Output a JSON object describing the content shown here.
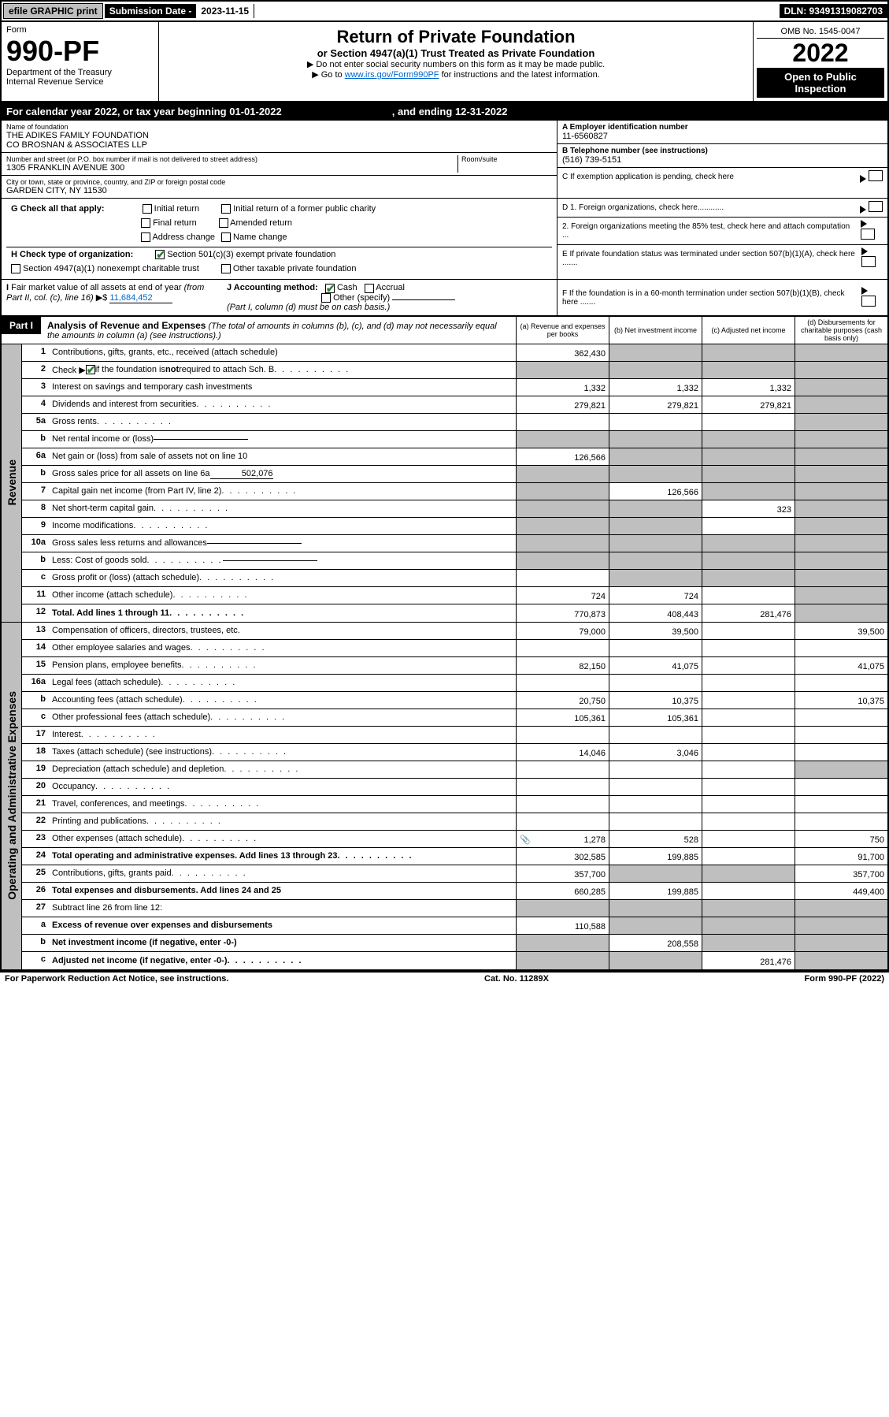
{
  "top": {
    "efile": "efile GRAPHIC print",
    "subm_label": "Submission Date - ",
    "subm_date": "2023-11-15",
    "dln": "DLN: 93491319082703"
  },
  "header": {
    "form_word": "Form",
    "form_no": "990-PF",
    "dept": "Department of the Treasury",
    "irs": "Internal Revenue Service",
    "title": "Return of Private Foundation",
    "subtitle": "or Section 4947(a)(1) Trust Treated as Private Foundation",
    "instr1": "▶ Do not enter social security numbers on this form as it may be made public.",
    "instr2_pre": "▶ Go to ",
    "instr2_link": "www.irs.gov/Form990PF",
    "instr2_post": " for instructions and the latest information.",
    "omb": "OMB No. 1545-0047",
    "year": "2022",
    "openpub": "Open to Public Inspection"
  },
  "calyear": {
    "text1": "For calendar year 2022, or tax year beginning ",
    "begin": "01-01-2022",
    "text2": ", and ending ",
    "end": "12-31-2022"
  },
  "info": {
    "name_label": "Name of foundation",
    "name1": "THE ADIKES FAMILY FOUNDATION",
    "name2": "CO BROSNAN & ASSOCIATES LLP",
    "addr_label": "Number and street (or P.O. box number if mail is not delivered to street address)",
    "addr": "1305 FRANKLIN AVENUE 300",
    "room_label": "Room/suite",
    "city_label": "City or town, state or province, country, and ZIP or foreign postal code",
    "city": "GARDEN CITY, NY  11530",
    "ein_label": "A Employer identification number",
    "ein": "11-6560827",
    "tel_label": "B Telephone number (see instructions)",
    "tel": "(516) 739-5151",
    "c_label": "C If exemption application is pending, check here",
    "d1": "D 1. Foreign organizations, check here............",
    "d2": "2. Foreign organizations meeting the 85% test, check here and attach computation ...",
    "e_label": "E  If private foundation status was terminated under section 507(b)(1)(A), check here .......",
    "f_label": "F  If the foundation is in a 60-month termination under section 507(b)(1)(B), check here .......",
    "g_label": "G Check all that apply:",
    "g_opts": [
      "Initial return",
      "Initial return of a former public charity",
      "Final return",
      "Amended return",
      "Address change",
      "Name change"
    ],
    "h_label": "H Check type of organization:",
    "h1": "Section 501(c)(3) exempt private foundation",
    "h2": "Section 4947(a)(1) nonexempt charitable trust",
    "h3": "Other taxable private foundation",
    "i_label": "I Fair market value of all assets at end of year (from Part II, col. (c), line 16) ▶$ ",
    "i_val": "11,684,452",
    "j_label": "J Accounting method:",
    "j_cash": "Cash",
    "j_accr": "Accrual",
    "j_other": "Other (specify)",
    "j_note": "(Part I, column (d) must be on cash basis.)"
  },
  "part1": {
    "tag": "Part I",
    "title": "Analysis of Revenue and Expenses",
    "title_note": " (The total of amounts in columns (b), (c), and (d) may not necessarily equal the amounts in column (a) (see instructions).)",
    "col_a": "(a)   Revenue and expenses per books",
    "col_b": "(b)   Net investment income",
    "col_c": "(c)   Adjusted net income",
    "col_d": "(d)  Disbursements for charitable purposes (cash basis only)"
  },
  "sections": {
    "revenue": "Revenue",
    "opexp": "Operating and Administrative Expenses"
  },
  "rows": [
    {
      "n": "1",
      "label": "Contributions, gifts, grants, etc., received (attach schedule)",
      "a": "362,430",
      "b_grey": true,
      "c_grey": true,
      "d_grey": true
    },
    {
      "n": "2",
      "label": "Check ▶ ☑ if the foundation is not required to attach Sch. B",
      "dots": true,
      "a_grey": true,
      "b_grey": true,
      "c_grey": true,
      "d_grey": true,
      "bold_not": true
    },
    {
      "n": "3",
      "label": "Interest on savings and temporary cash investments",
      "a": "1,332",
      "b": "1,332",
      "c": "1,332",
      "d_grey": true
    },
    {
      "n": "4",
      "label": "Dividends and interest from securities",
      "dots": true,
      "a": "279,821",
      "b": "279,821",
      "c": "279,821",
      "d_grey": true
    },
    {
      "n": "5a",
      "label": "Gross rents",
      "dots": true,
      "d_grey": true
    },
    {
      "n": "b",
      "label": "Net rental income or (loss)",
      "inline": true,
      "a_grey": true,
      "b_grey": true,
      "c_grey": true,
      "d_grey": true
    },
    {
      "n": "6a",
      "label": "Net gain or (loss) from sale of assets not on line 10",
      "a": "126,566",
      "b_grey": true,
      "c_grey": true,
      "d_grey": true
    },
    {
      "n": "b",
      "label": "Gross sales price for all assets on line 6a",
      "inline_val": "502,076",
      "a_grey": true,
      "b_grey": true,
      "c_grey": true,
      "d_grey": true
    },
    {
      "n": "7",
      "label": "Capital gain net income (from Part IV, line 2)",
      "dots": true,
      "a_grey": true,
      "b": "126,566",
      "c_grey": true,
      "d_grey": true
    },
    {
      "n": "8",
      "label": "Net short-term capital gain",
      "dots": true,
      "a_grey": true,
      "b_grey": true,
      "c": "323",
      "d_grey": true
    },
    {
      "n": "9",
      "label": "Income modifications",
      "dots": true,
      "a_grey": true,
      "b_grey": true,
      "d_grey": true
    },
    {
      "n": "10a",
      "label": "Gross sales less returns and allowances",
      "inline": true,
      "a_grey": true,
      "b_grey": true,
      "c_grey": true,
      "d_grey": true
    },
    {
      "n": "b",
      "label": "Less: Cost of goods sold",
      "dots": true,
      "inline": true,
      "a_grey": true,
      "b_grey": true,
      "c_grey": true,
      "d_grey": true
    },
    {
      "n": "c",
      "label": "Gross profit or (loss) (attach schedule)",
      "dots": true,
      "b_grey": true,
      "c_grey": true,
      "d_grey": true
    },
    {
      "n": "11",
      "label": "Other income (attach schedule)",
      "dots": true,
      "a": "724",
      "b": "724",
      "d_grey": true
    },
    {
      "n": "12",
      "label": "Total. Add lines 1 through 11",
      "dots": true,
      "bold": true,
      "a": "770,873",
      "b": "408,443",
      "c": "281,476",
      "d_grey": true
    }
  ],
  "oprows": [
    {
      "n": "13",
      "label": "Compensation of officers, directors, trustees, etc.",
      "a": "79,000",
      "b": "39,500",
      "d": "39,500"
    },
    {
      "n": "14",
      "label": "Other employee salaries and wages",
      "dots": true
    },
    {
      "n": "15",
      "label": "Pension plans, employee benefits",
      "dots": true,
      "a": "82,150",
      "b": "41,075",
      "d": "41,075"
    },
    {
      "n": "16a",
      "label": "Legal fees (attach schedule)",
      "dots": true
    },
    {
      "n": "b",
      "label": "Accounting fees (attach schedule)",
      "dots": true,
      "a": "20,750",
      "b": "10,375",
      "d": "10,375"
    },
    {
      "n": "c",
      "label": "Other professional fees (attach schedule)",
      "dots": true,
      "a": "105,361",
      "b": "105,361"
    },
    {
      "n": "17",
      "label": "Interest",
      "dots": true
    },
    {
      "n": "18",
      "label": "Taxes (attach schedule) (see instructions)",
      "dots": true,
      "a": "14,046",
      "b": "3,046"
    },
    {
      "n": "19",
      "label": "Depreciation (attach schedule) and depletion",
      "dots": true,
      "d_grey": true
    },
    {
      "n": "20",
      "label": "Occupancy",
      "dots": true
    },
    {
      "n": "21",
      "label": "Travel, conferences, and meetings",
      "dots": true
    },
    {
      "n": "22",
      "label": "Printing and publications",
      "dots": true
    },
    {
      "n": "23",
      "label": "Other expenses (attach schedule)",
      "dots": true,
      "a": "1,278",
      "b": "528",
      "d": "750",
      "icon": true
    },
    {
      "n": "24",
      "label": "Total operating and administrative expenses. Add lines 13 through 23",
      "dots": true,
      "bold": true,
      "a": "302,585",
      "b": "199,885",
      "d": "91,700"
    },
    {
      "n": "25",
      "label": "Contributions, gifts, grants paid",
      "dots": true,
      "a": "357,700",
      "b_grey": true,
      "c_grey": true,
      "d": "357,700"
    },
    {
      "n": "26",
      "label": "Total expenses and disbursements. Add lines 24 and 25",
      "bold": true,
      "a": "660,285",
      "b": "199,885",
      "d": "449,400"
    },
    {
      "n": "27",
      "label": "Subtract line 26 from line 12:",
      "a_grey": true,
      "b_grey": true,
      "c_grey": true,
      "d_grey": true
    },
    {
      "n": "a",
      "label": "Excess of revenue over expenses and disbursements",
      "bold": true,
      "a": "110,588",
      "b_grey": true,
      "c_grey": true,
      "d_grey": true
    },
    {
      "n": "b",
      "label": "Net investment income (if negative, enter -0-)",
      "bold": true,
      "a_grey": true,
      "b": "208,558",
      "c_grey": true,
      "d_grey": true
    },
    {
      "n": "c",
      "label": "Adjusted net income (if negative, enter -0-)",
      "dots": true,
      "bold": true,
      "a_grey": true,
      "b_grey": true,
      "c": "281,476",
      "d_grey": true
    }
  ],
  "footer": {
    "left": "For Paperwork Reduction Act Notice, see instructions.",
    "mid": "Cat. No. 11289X",
    "right": "Form 990-PF (2022)"
  }
}
